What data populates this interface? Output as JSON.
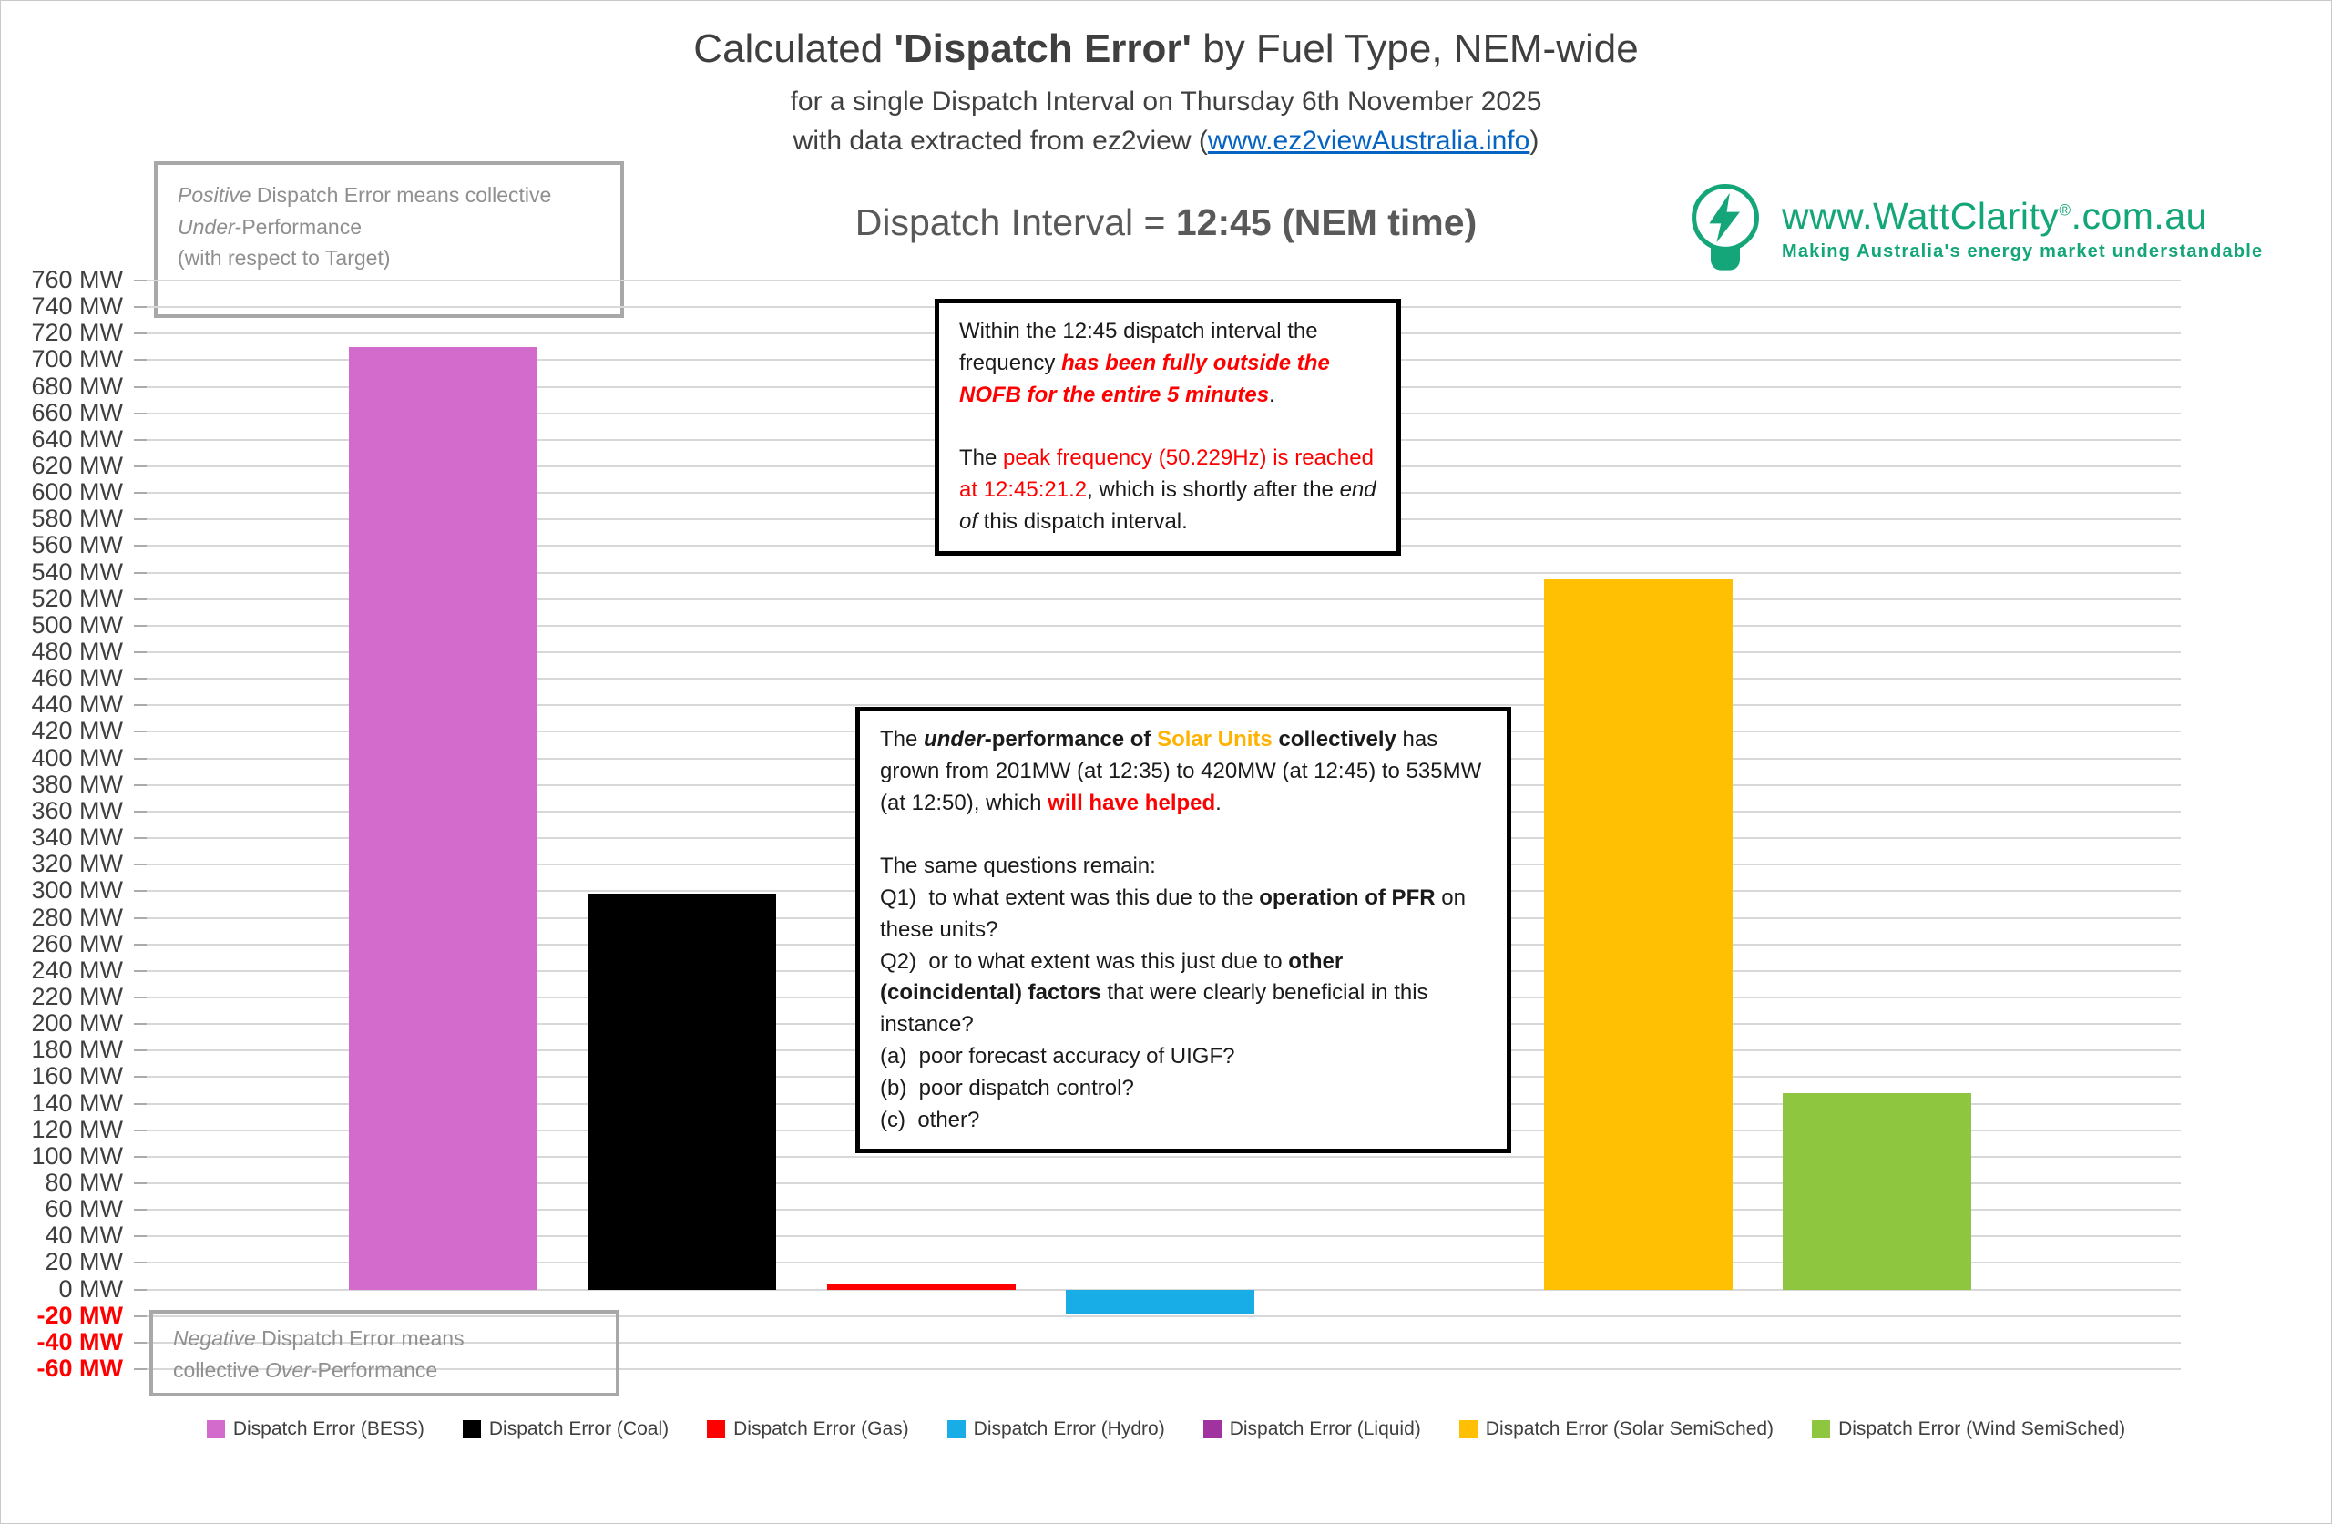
{
  "header": {
    "title_runs": [
      {
        "t": "Calculated ",
        "c": ""
      },
      {
        "t": "'Dispatch Error'",
        "c": "b"
      },
      {
        "t": " by Fuel Type, NEM-wide",
        "c": ""
      }
    ],
    "subtitle1": "for a single Dispatch Interval on Thursday 6th November 2025",
    "subtitle2_runs": [
      {
        "t": "with data extracted from ez2view (",
        "c": ""
      },
      {
        "t": "www.ez2viewAustralia.info",
        "c": "link"
      },
      {
        "t": ")",
        "c": ""
      }
    ],
    "interval_runs": [
      {
        "t": "Dispatch Interval = ",
        "c": ""
      },
      {
        "t": "12:45 (NEM time)",
        "c": "b"
      }
    ]
  },
  "logo": {
    "url_main": "www.WattClarity",
    "reg": "®",
    "url_suffix": ".com.au",
    "tagline": "Making Australia's energy market understandable",
    "color": "#14a678"
  },
  "notes": {
    "positive_runs": [
      {
        "t": "Positive",
        "c": "i"
      },
      {
        "t": " Dispatch Error means collective\n",
        "c": ""
      },
      {
        "t": "Under",
        "c": "i"
      },
      {
        "t": "-Performance\n(with respect to Target)",
        "c": ""
      }
    ],
    "negative_runs": [
      {
        "t": "Negative",
        "c": "i"
      },
      {
        "t": " Dispatch Error means\ncollective ",
        "c": ""
      },
      {
        "t": "Over",
        "c": "i"
      },
      {
        "t": "-Performance",
        "c": ""
      }
    ],
    "frequency_runs": [
      {
        "t": "Within the 12:45 dispatch interval the frequency ",
        "c": ""
      },
      {
        "t": "has been fully outside the NOFB for the entire 5 minutes",
        "c": "b i red"
      },
      {
        "t": ".\n\nThe ",
        "c": ""
      },
      {
        "t": "peak frequency (50.229Hz) is reached at 12:45:21.2",
        "c": "red"
      },
      {
        "t": ", which is shortly after the ",
        "c": ""
      },
      {
        "t": "end of",
        "c": "i"
      },
      {
        "t": " this dispatch interval.",
        "c": ""
      }
    ],
    "solar_runs": [
      {
        "t": "The ",
        "c": ""
      },
      {
        "t": "under",
        "c": "b i"
      },
      {
        "t": "-performance of ",
        "c": "b"
      },
      {
        "t": "Solar Units",
        "c": "b orange"
      },
      {
        "t": " collectively",
        "c": "b"
      },
      {
        "t": " has grown from 201MW (at 12:35) to 420MW (at 12:45) to 535MW (at 12:50), which ",
        "c": ""
      },
      {
        "t": "will have helped",
        "c": "b red"
      },
      {
        "t": ".\n\nThe same questions remain:\nQ1)  to what extent was this due to the ",
        "c": ""
      },
      {
        "t": "operation of PFR",
        "c": "b"
      },
      {
        "t": " on these units?\nQ2)  or to what extent was this just due to ",
        "c": ""
      },
      {
        "t": "other (coincidental) factors",
        "c": "b"
      },
      {
        "t": " that were clearly beneficial in this instance?\n(a)  poor forecast accuracy of UIGF?\n(b)  poor dispatch control?\n(c)  other?",
        "c": ""
      }
    ]
  },
  "chart_data": {
    "type": "bar",
    "title": "Calculated 'Dispatch Error' by Fuel Type, NEM-wide",
    "subtitle": "for a single Dispatch Interval on Thursday 6th November 2025",
    "dispatch_interval": "12:45 (NEM time)",
    "unit": "MW",
    "axis": {
      "max": 760,
      "min": -60,
      "step": 20
    },
    "grid": true,
    "legend_position": "bottom",
    "negative_tick_color": "#fe0000",
    "categories": [
      "BESS",
      "Coal",
      "Gas",
      "Hydro",
      "Liquid",
      "Solar SemiSched",
      "Wind SemiSched"
    ],
    "series": [
      {
        "name": "Dispatch Error (BESS)",
        "fuel": "BESS",
        "color": "#d36bcc",
        "value": 710
      },
      {
        "name": "Dispatch Error (Coal)",
        "fuel": "Coal",
        "color": "#000000",
        "value": 298
      },
      {
        "name": "Dispatch Error (Gas)",
        "fuel": "Gas",
        "color": "#fe0000",
        "value": 4
      },
      {
        "name": "Dispatch Error (Hydro)",
        "fuel": "Hydro",
        "color": "#18ade6",
        "value": -18
      },
      {
        "name": "Dispatch Error (Liquid)",
        "fuel": "Liquid",
        "color": "#a133a1",
        "value": 0
      },
      {
        "name": "Dispatch Error (Solar SemiSched)",
        "fuel": "Solar SemiSched",
        "color": "#ffc003",
        "value": 535
      },
      {
        "name": "Dispatch Error (Wind SemiSched)",
        "fuel": "Wind SemiSched",
        "color": "#8ec63f",
        "value": 148
      }
    ]
  }
}
